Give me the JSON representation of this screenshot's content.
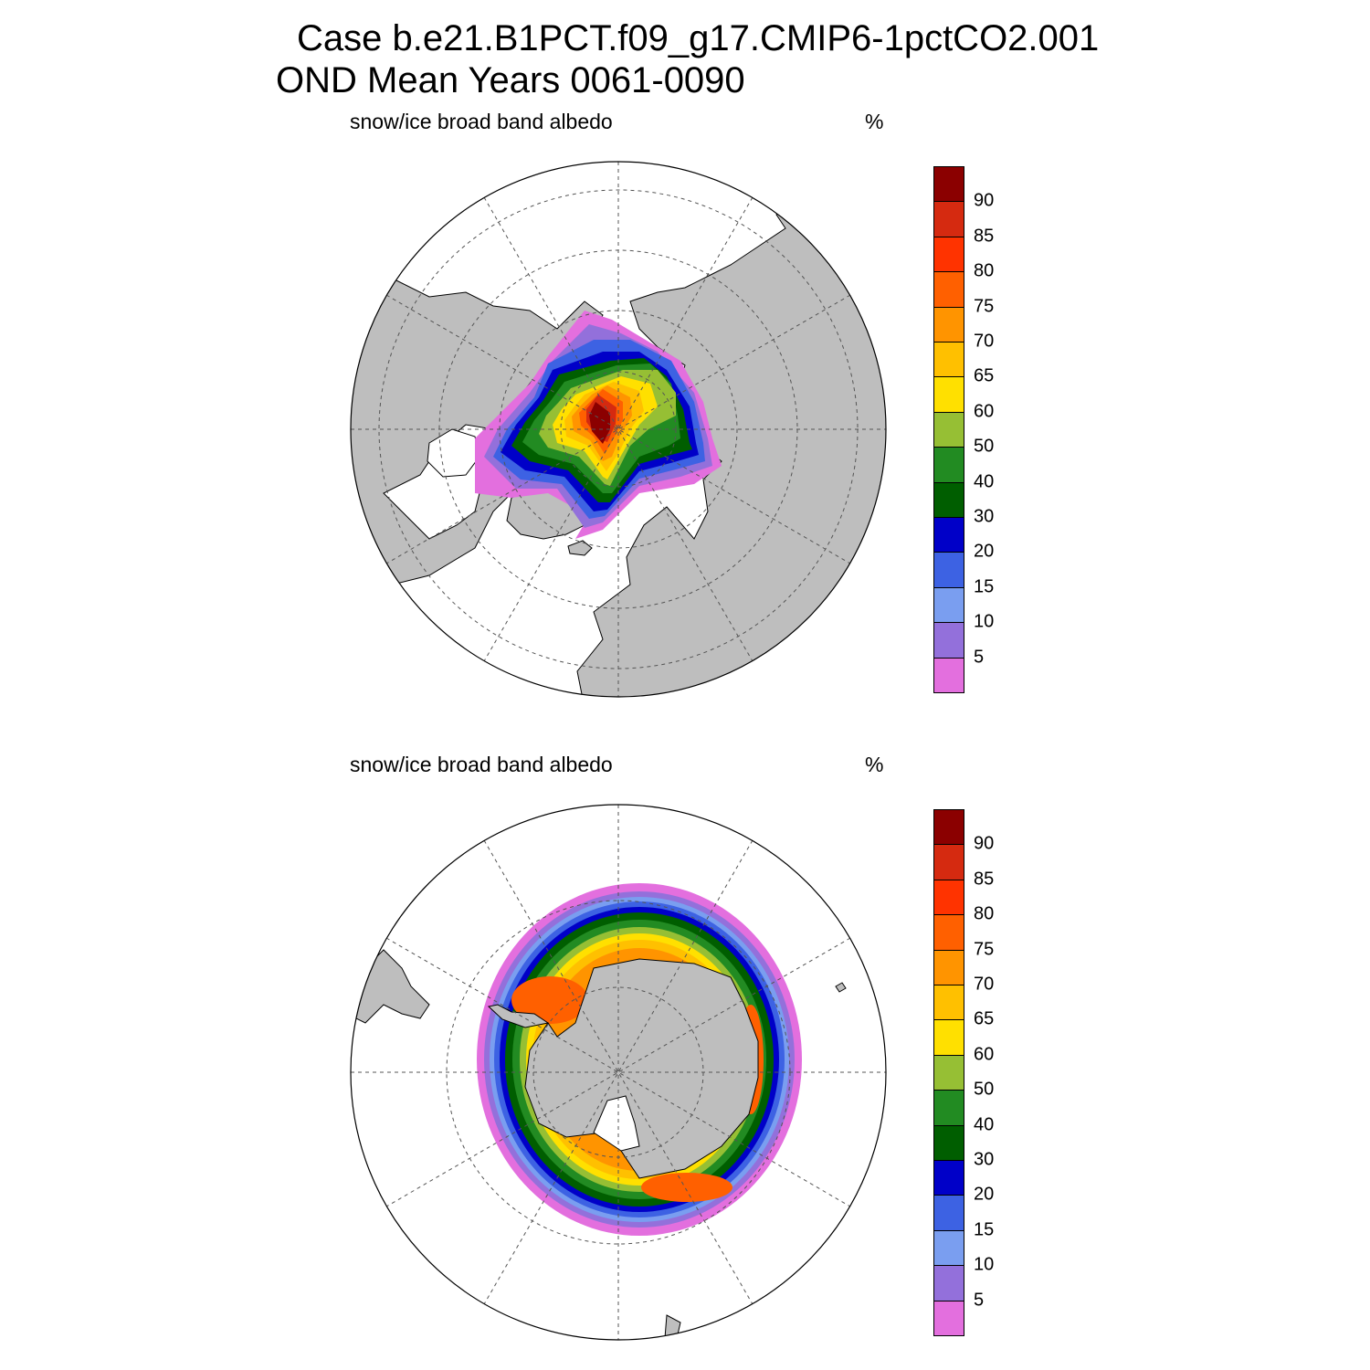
{
  "header": {
    "line1": "Case b.e21.B1PCT.f09_g17.CMIP6-1pctCO2.001",
    "line2": "OND Mean   Years 0061-0090"
  },
  "panels": [
    {
      "id": "north",
      "variable": "snow/ice broad band albedo",
      "units": "%"
    },
    {
      "id": "south",
      "variable": "snow/ice broad band albedo",
      "units": "%"
    }
  ],
  "colorbar": {
    "levels": [
      "5",
      "10",
      "15",
      "20",
      "30",
      "40",
      "50",
      "60",
      "65",
      "70",
      "75",
      "80",
      "85",
      "90"
    ],
    "colors": [
      "#e36fde",
      "#9370db",
      "#7a9ef0",
      "#3d62e3",
      "#0000c8",
      "#005e00",
      "#228b22",
      "#96bf34",
      "#ffe000",
      "#ffc000",
      "#ff9400",
      "#ff6000",
      "#ff3300",
      "#d52a10",
      "#8b0000"
    ]
  },
  "colors": {
    "land": "#bebebe",
    "ocean": "#ffffff",
    "grid": "#555555"
  }
}
